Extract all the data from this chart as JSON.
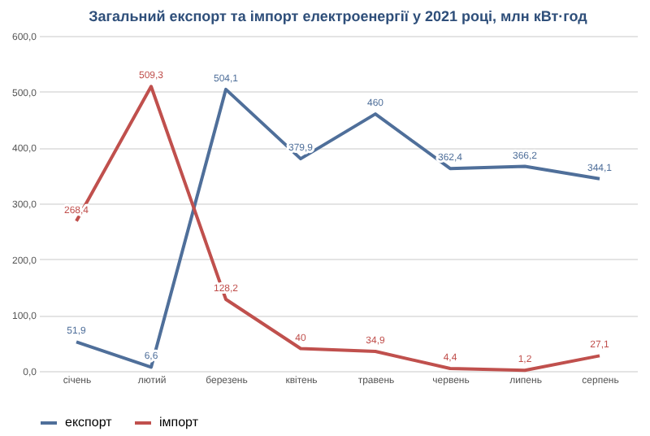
{
  "chart_data": {
    "type": "line",
    "title": "Загальний експорт та імпорт електроенергії у 2021 році, млн кВт·год",
    "categories": [
      "січень",
      "лютий",
      "березень",
      "квітень",
      "травень",
      "червень",
      "липень",
      "серпень"
    ],
    "series": [
      {
        "name": "експорт",
        "color": "#4f6f9a",
        "values": [
          51.9,
          6.6,
          504.1,
          379.9,
          460,
          362.4,
          366.2,
          344.1
        ],
        "value_labels": [
          "51,9",
          "6,6",
          "504,1",
          "379,9",
          "460",
          "362,4",
          "366,2",
          "344,1"
        ]
      },
      {
        "name": "імпорт",
        "color": "#c0504d",
        "values": [
          268.4,
          509.3,
          128.2,
          40,
          34.9,
          4.4,
          1.2,
          27.1
        ],
        "value_labels": [
          "268,4",
          "509,3",
          "128,2",
          "40",
          "34,9",
          "4,4",
          "1,2",
          "27,1"
        ]
      }
    ],
    "ylim": [
      0,
      600
    ],
    "yticks": [
      {
        "value": 0,
        "label": "0,0"
      },
      {
        "value": 100,
        "label": "100,0"
      },
      {
        "value": 200,
        "label": "200,0"
      },
      {
        "value": 300,
        "label": "300,0"
      },
      {
        "value": 400,
        "label": "400,0"
      },
      {
        "value": 500,
        "label": "500,0"
      },
      {
        "value": 600,
        "label": "600,0"
      }
    ],
    "grid": "y",
    "legend": "bottom",
    "marker": "none",
    "line_style": "solid"
  }
}
